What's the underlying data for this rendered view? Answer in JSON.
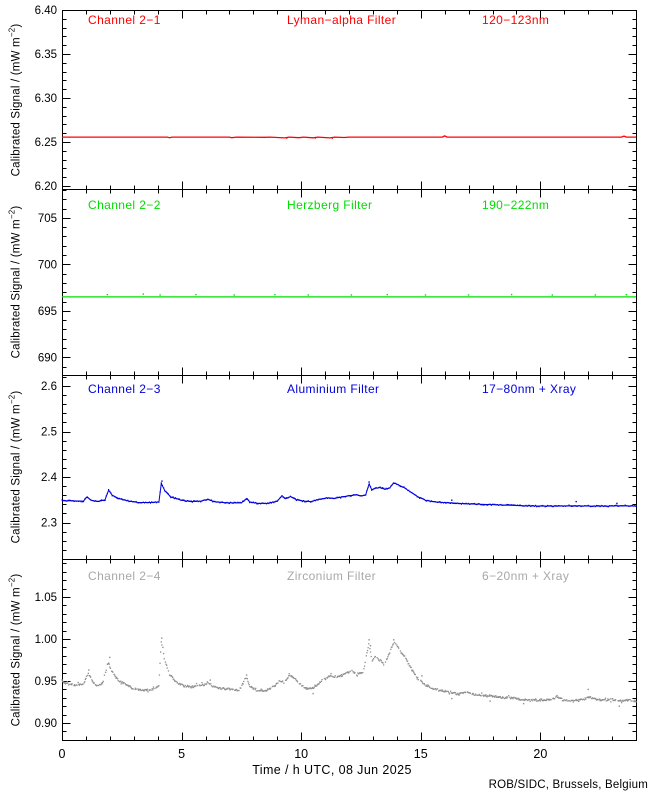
{
  "credit": "ROB/SIDC, Brussels, Belgium",
  "ylabel": {
    "prefix": "Calibrated Signal / (mW m",
    "sup": "−2",
    "suffix": ")"
  },
  "xaxis": {
    "title": "Time / h UTC, 08 Jun 2025",
    "range": [
      0,
      24
    ],
    "major_ticks": [
      0,
      5,
      10,
      15,
      20
    ],
    "major_tick_labels": [
      "0",
      "5",
      "10",
      "15",
      "20"
    ],
    "minor_step": 1
  },
  "chart_data": [
    {
      "type": "line",
      "channel": "Channel 2−1",
      "filter": "Lyman−alpha Filter",
      "band": "120−123nm",
      "color": "#ff0000",
      "label_color": "#ff0000",
      "ylim": [
        6.1966,
        6.4
      ],
      "yticks": [
        6.4,
        6.35,
        6.3,
        6.25,
        6.2
      ],
      "ytick_labels": [
        "6.40",
        "6.35",
        "6.30",
        "6.25",
        "6.20"
      ],
      "minor_step": 0.01,
      "series": [
        [
          0,
          6.2556
        ],
        [
          4.4,
          6.2556
        ],
        [
          4.5,
          6.2549
        ],
        [
          4.6,
          6.2556
        ],
        [
          7.0,
          6.2556
        ],
        [
          7.1,
          6.2549
        ],
        [
          7.3,
          6.2556
        ],
        [
          8.5,
          6.2553
        ],
        [
          8.7,
          6.2556
        ],
        [
          9.3,
          6.2547
        ],
        [
          9.5,
          6.2556
        ],
        [
          9.9,
          6.2549
        ],
        [
          10.1,
          6.2556
        ],
        [
          10.5,
          6.2548
        ],
        [
          10.7,
          6.2556
        ],
        [
          11.2,
          6.2547
        ],
        [
          11.4,
          6.2556
        ],
        [
          11.8,
          6.2551
        ],
        [
          12.0,
          6.2556
        ],
        [
          15.9,
          6.2556
        ],
        [
          16.0,
          6.2569
        ],
        [
          16.1,
          6.2556
        ],
        [
          23.4,
          6.2556
        ],
        [
          23.5,
          6.2567
        ],
        [
          23.6,
          6.2556
        ],
        [
          24,
          6.2556
        ]
      ],
      "scatter": [
        [
          9.4,
          6.2544
        ],
        [
          10.6,
          6.2545
        ],
        [
          11.3,
          6.2544
        ]
      ]
    },
    {
      "type": "line",
      "channel": "Channel 2−2",
      "filter": "Herzberg Filter",
      "band": "190−222nm",
      "color": "#00dd00",
      "label_color": "#00dd00",
      "ylim": [
        688.1,
        708.1
      ],
      "yticks": [
        705,
        700,
        695,
        690
      ],
      "ytick_labels": [
        "705",
        "700",
        "695",
        "690"
      ],
      "minor_step": 1,
      "series": [
        [
          0,
          696.5
        ],
        [
          24,
          696.5
        ]
      ],
      "scatter": [
        [
          1.9,
          696.75
        ],
        [
          3.4,
          696.8
        ],
        [
          4.1,
          696.7
        ],
        [
          5.6,
          696.75
        ],
        [
          7.2,
          696.7
        ],
        [
          8.9,
          696.75
        ],
        [
          10.3,
          696.7
        ],
        [
          12.1,
          696.7
        ],
        [
          13.6,
          696.75
        ],
        [
          15.2,
          696.7
        ],
        [
          17.0,
          696.7
        ],
        [
          18.8,
          696.75
        ],
        [
          20.5,
          696.7
        ],
        [
          22.3,
          696.7
        ],
        [
          23.6,
          696.75
        ]
      ]
    },
    {
      "type": "scatter-line",
      "channel": "Channel 2−3",
      "filter": "Aluminium Filter",
      "band": "17−80nm + Xray",
      "color": "#0000dd",
      "label_color": "#0000dd",
      "ylim": [
        2.2198,
        2.6242
      ],
      "yticks": [
        2.6,
        2.5,
        2.4,
        2.3
      ],
      "ytick_labels": [
        "2.6",
        "2.5",
        "2.4",
        "2.3"
      ],
      "minor_step": 0.02,
      "series": [
        [
          0,
          2.348
        ],
        [
          0.5,
          2.3475
        ],
        [
          0.9,
          2.347
        ],
        [
          1.05,
          2.3565
        ],
        [
          1.2,
          2.349
        ],
        [
          1.5,
          2.346
        ],
        [
          1.8,
          2.35
        ],
        [
          1.95,
          2.371
        ],
        [
          2.1,
          2.36
        ],
        [
          2.4,
          2.352
        ],
        [
          2.8,
          2.347
        ],
        [
          3.2,
          2.344
        ],
        [
          3.7,
          2.344
        ],
        [
          4.05,
          2.345
        ],
        [
          4.15,
          2.386
        ],
        [
          4.3,
          2.37
        ],
        [
          4.55,
          2.356
        ],
        [
          5.0,
          2.349
        ],
        [
          5.4,
          2.346
        ],
        [
          5.8,
          2.347
        ],
        [
          6.1,
          2.351
        ],
        [
          6.35,
          2.346
        ],
        [
          6.7,
          2.344
        ],
        [
          7.1,
          2.343
        ],
        [
          7.5,
          2.343
        ],
        [
          7.72,
          2.353
        ],
        [
          7.85,
          2.345
        ],
        [
          8.2,
          2.342
        ],
        [
          8.6,
          2.342
        ],
        [
          9.0,
          2.347
        ],
        [
          9.2,
          2.359
        ],
        [
          9.35,
          2.352
        ],
        [
          9.55,
          2.357
        ],
        [
          9.8,
          2.35
        ],
        [
          10.1,
          2.347
        ],
        [
          10.4,
          2.346
        ],
        [
          10.75,
          2.351
        ],
        [
          11.1,
          2.354
        ],
        [
          11.4,
          2.353
        ],
        [
          11.7,
          2.356
        ],
        [
          12.0,
          2.359
        ],
        [
          12.3,
          2.361
        ],
        [
          12.5,
          2.358
        ],
        [
          12.7,
          2.361
        ],
        [
          12.84,
          2.385
        ],
        [
          12.95,
          2.372
        ],
        [
          13.1,
          2.375
        ],
        [
          13.3,
          2.377
        ],
        [
          13.5,
          2.373
        ],
        [
          13.7,
          2.376
        ],
        [
          13.87,
          2.387
        ],
        [
          14.05,
          2.383
        ],
        [
          14.3,
          2.377
        ],
        [
          14.6,
          2.366
        ],
        [
          14.9,
          2.356
        ],
        [
          15.2,
          2.349
        ],
        [
          15.5,
          2.346
        ],
        [
          15.9,
          2.344
        ],
        [
          16.3,
          2.343
        ],
        [
          16.9,
          2.341
        ],
        [
          17.5,
          2.34
        ],
        [
          18.1,
          2.339
        ],
        [
          18.7,
          2.338
        ],
        [
          19.3,
          2.337
        ],
        [
          20.0,
          2.336
        ],
        [
          20.7,
          2.336
        ],
        [
          21.4,
          2.337
        ],
        [
          22.1,
          2.336
        ],
        [
          22.8,
          2.336
        ],
        [
          23.4,
          2.337
        ],
        [
          24,
          2.336
        ]
      ],
      "scatter": [
        [
          4.18,
          2.391
        ],
        [
          12.84,
          2.389
        ],
        [
          16.3,
          2.349
        ],
        [
          21.5,
          2.346
        ],
        [
          23.2,
          2.342
        ]
      ]
    },
    {
      "type": "scatter",
      "channel": "Channel 2−4",
      "filter": "Zirconium Filter",
      "band": "6−20nm + Xray",
      "color": "#8f8f8f",
      "label_color": "#a8a8a8",
      "ylim": [
        0.8797,
        1.0952
      ],
      "yticks": [
        1.05,
        1.0,
        0.95,
        0.9
      ],
      "ytick_labels": [
        "1.05",
        "1.00",
        "0.95",
        "0.90"
      ],
      "minor_step": 0.01,
      "series": [
        [
          0,
          0.949
        ],
        [
          0.3,
          0.946
        ],
        [
          0.6,
          0.945
        ],
        [
          0.9,
          0.947
        ],
        [
          1.1,
          0.959
        ],
        [
          1.3,
          0.948
        ],
        [
          1.5,
          0.944
        ],
        [
          1.7,
          0.948
        ],
        [
          1.93,
          0.972
        ],
        [
          2.1,
          0.961
        ],
        [
          2.35,
          0.951
        ],
        [
          2.65,
          0.946
        ],
        [
          3.0,
          0.941
        ],
        [
          3.4,
          0.939
        ],
        [
          3.8,
          0.94
        ],
        [
          4.05,
          0.944
        ],
        [
          4.15,
          0.997
        ],
        [
          4.3,
          0.974
        ],
        [
          4.5,
          0.958
        ],
        [
          4.8,
          0.948
        ],
        [
          5.1,
          0.944
        ],
        [
          5.5,
          0.943
        ],
        [
          5.9,
          0.945
        ],
        [
          6.1,
          0.948
        ],
        [
          6.35,
          0.943
        ],
        [
          6.6,
          0.941
        ],
        [
          7.0,
          0.94
        ],
        [
          7.4,
          0.939
        ],
        [
          7.72,
          0.954
        ],
        [
          7.85,
          0.944
        ],
        [
          8.1,
          0.939
        ],
        [
          8.5,
          0.938
        ],
        [
          8.9,
          0.944
        ],
        [
          9.1,
          0.951
        ],
        [
          9.3,
          0.947
        ],
        [
          9.5,
          0.958
        ],
        [
          9.75,
          0.952
        ],
        [
          10.0,
          0.945
        ],
        [
          10.3,
          0.94
        ],
        [
          10.6,
          0.943
        ],
        [
          10.9,
          0.952
        ],
        [
          11.2,
          0.956
        ],
        [
          11.5,
          0.955
        ],
        [
          11.8,
          0.958
        ],
        [
          12.1,
          0.962
        ],
        [
          12.35,
          0.957
        ],
        [
          12.6,
          0.961
        ],
        [
          12.84,
          0.996
        ],
        [
          12.95,
          0.974
        ],
        [
          13.1,
          0.978
        ],
        [
          13.3,
          0.975
        ],
        [
          13.45,
          0.97
        ],
        [
          13.6,
          0.977
        ],
        [
          13.87,
          0.996
        ],
        [
          14.05,
          0.99
        ],
        [
          14.3,
          0.98
        ],
        [
          14.6,
          0.965
        ],
        [
          14.9,
          0.952
        ],
        [
          15.2,
          0.945
        ],
        [
          15.5,
          0.941
        ],
        [
          15.8,
          0.939
        ],
        [
          16.2,
          0.937
        ],
        [
          16.6,
          0.934
        ],
        [
          16.9,
          0.938
        ],
        [
          17.2,
          0.934
        ],
        [
          17.6,
          0.933
        ],
        [
          18.0,
          0.932
        ],
        [
          18.4,
          0.93
        ],
        [
          18.8,
          0.93
        ],
        [
          19.2,
          0.928
        ],
        [
          19.6,
          0.927
        ],
        [
          20.0,
          0.927
        ],
        [
          20.4,
          0.928
        ],
        [
          20.7,
          0.931
        ],
        [
          21.0,
          0.927
        ],
        [
          21.4,
          0.927
        ],
        [
          21.8,
          0.928
        ],
        [
          22.05,
          0.931
        ],
        [
          22.3,
          0.928
        ],
        [
          22.6,
          0.927
        ],
        [
          23.0,
          0.928
        ],
        [
          23.4,
          0.926
        ],
        [
          23.7,
          0.927
        ],
        [
          24,
          0.926
        ]
      ],
      "scatter": [
        [
          1.12,
          0.963
        ],
        [
          2.0,
          0.978
        ],
        [
          4.17,
          1.001
        ],
        [
          4.22,
          0.99
        ],
        [
          6.2,
          0.951
        ],
        [
          7.72,
          0.957
        ],
        [
          10.5,
          0.935
        ],
        [
          12.84,
          0.999
        ],
        [
          12.9,
          0.992
        ],
        [
          13.87,
          0.999
        ],
        [
          15.05,
          0.956
        ],
        [
          16.3,
          0.929
        ],
        [
          17.9,
          0.926
        ],
        [
          19.3,
          0.923
        ],
        [
          22.0,
          0.94
        ],
        [
          23.3,
          0.92
        ]
      ]
    }
  ]
}
